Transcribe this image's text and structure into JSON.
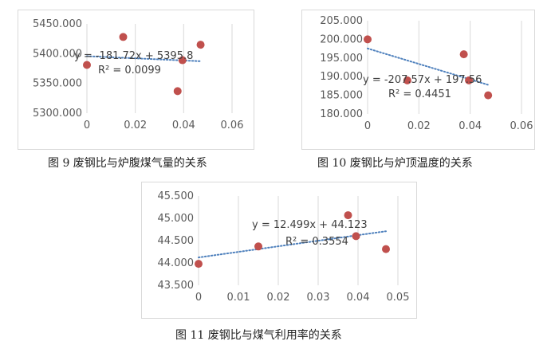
{
  "colors": {
    "point": "#c0504d",
    "trend": "#4f81bd",
    "grid": "#d9d9d9",
    "text": "#595959"
  },
  "chart_data": [
    {
      "type": "scatter",
      "caption": "图 9  废钢比与炉腹煤气量的关系",
      "title": "",
      "xlabel": "",
      "ylabel": "",
      "xlim": [
        0,
        0.06
      ],
      "ylim": [
        5300,
        5450
      ],
      "x_ticks": [
        "0",
        "0.02",
        "0.04",
        "0.06"
      ],
      "y_ticks": [
        "5300.000",
        "5350.000",
        "5400.000",
        "5450.000"
      ],
      "grid": "vertical",
      "points": [
        {
          "x": 0,
          "y": 5381
        },
        {
          "x": 0.015,
          "y": 5428
        },
        {
          "x": 0.0375,
          "y": 5337
        },
        {
          "x": 0.0395,
          "y": 5389
        },
        {
          "x": 0.047,
          "y": 5415
        }
      ],
      "trendline": {
        "slope": -181.72,
        "intercept": 5395.8,
        "x_range": [
          0,
          0.047
        ]
      },
      "equation": "y = -181.72x + 5395.8",
      "r_squared": "R² = 0.0099"
    },
    {
      "type": "scatter",
      "caption": "图 10  废钢比与炉顶温度的关系",
      "title": "",
      "xlabel": "",
      "ylabel": "",
      "xlim": [
        0,
        0.06
      ],
      "ylim": [
        180,
        205
      ],
      "x_ticks": [
        "0",
        "0.02",
        "0.04",
        "0.06"
      ],
      "y_ticks": [
        "180.000",
        "185.000",
        "190.000",
        "195.000",
        "200.000",
        "205.000"
      ],
      "grid": "vertical",
      "points": [
        {
          "x": 0,
          "y": 200
        },
        {
          "x": 0.0155,
          "y": 189
        },
        {
          "x": 0.0375,
          "y": 196
        },
        {
          "x": 0.0395,
          "y": 189
        },
        {
          "x": 0.047,
          "y": 185
        }
      ],
      "trendline": {
        "slope": -207.57,
        "intercept": 197.56,
        "x_range": [
          0,
          0.047
        ]
      },
      "equation": "y = -207.57x + 197.56",
      "r_squared": "R² = 0.4451"
    },
    {
      "type": "scatter",
      "caption": "图 11  废钢比与煤气利用率的关系",
      "title": "",
      "xlabel": "",
      "ylabel": "",
      "xlim": [
        0,
        0.05
      ],
      "ylim": [
        43.5,
        45.5
      ],
      "x_ticks": [
        "0",
        "0.01",
        "0.02",
        "0.03",
        "0.04",
        "0.05"
      ],
      "y_ticks": [
        "43.500",
        "44.000",
        "44.500",
        "45.000",
        "45.500"
      ],
      "grid": "vertical",
      "points": [
        {
          "x": 0,
          "y": 43.98
        },
        {
          "x": 0.015,
          "y": 44.37
        },
        {
          "x": 0.0375,
          "y": 45.07
        },
        {
          "x": 0.0395,
          "y": 44.6
        },
        {
          "x": 0.047,
          "y": 44.31
        }
      ],
      "trendline": {
        "slope": 12.499,
        "intercept": 44.123,
        "x_range": [
          0,
          0.047
        ]
      },
      "equation": "y = 12.499x + 44.123",
      "r_squared": "R² = 0.3554"
    }
  ]
}
